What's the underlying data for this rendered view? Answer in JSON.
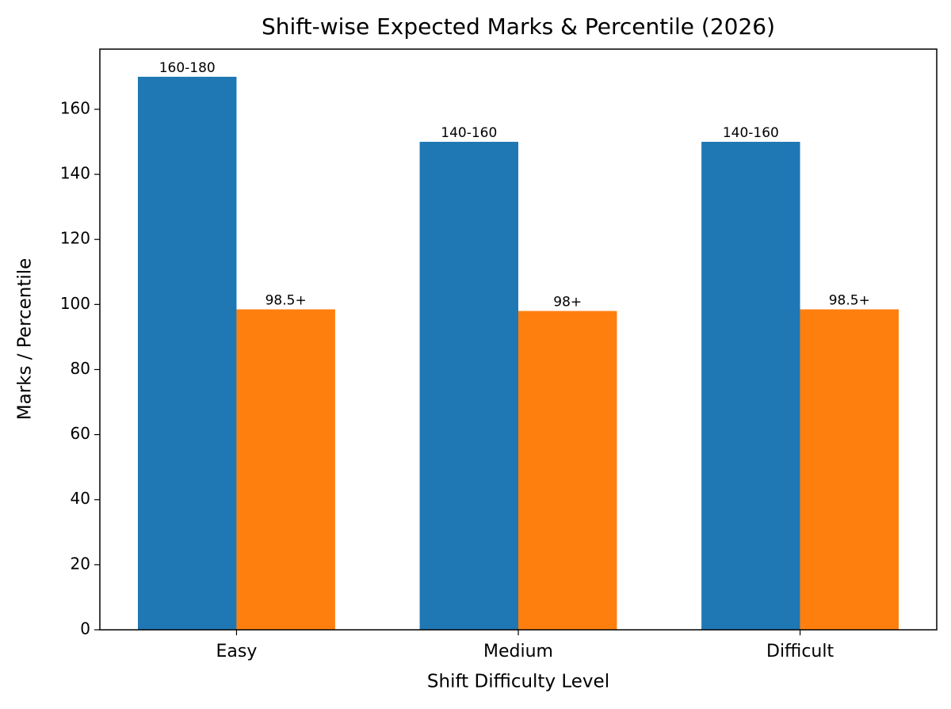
{
  "chart_data": {
    "type": "grouped-bar",
    "title": "Shift-wise Expected Marks & Percentile (2026)",
    "x_label": "Shift Difficulty Level",
    "y_label": "Marks / Percentile",
    "categories": [
      "Easy",
      "Medium",
      "Difficult"
    ],
    "series": [
      {
        "color": "#1f77b4",
        "values": [
          170,
          150,
          150
        ],
        "value_labels": [
          "160-180",
          "140-160",
          "140-160"
        ]
      },
      {
        "color": "#ff7f0e",
        "values": [
          98.5,
          98,
          98.5
        ],
        "value_labels": [
          "98.5+",
          "98+",
          "98.5+"
        ]
      }
    ],
    "ylim": [
      0,
      178.5
    ],
    "yticks": [
      0,
      20,
      40,
      60,
      80,
      100,
      120,
      140,
      160
    ],
    "grid": false
  }
}
